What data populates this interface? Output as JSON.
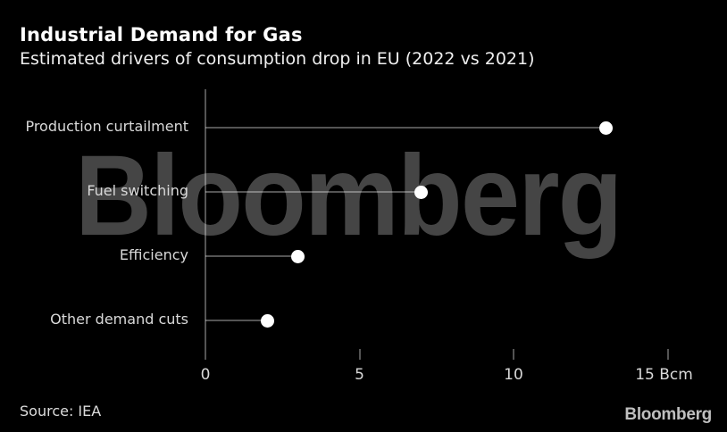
{
  "header": {
    "title": "Industrial Demand for Gas",
    "subtitle": "Estimated drivers of consumption drop in EU (2022 vs 2021)"
  },
  "watermark": "Bloomberg",
  "chart_data": {
    "type": "bar",
    "style": "lollipop",
    "orientation": "horizontal",
    "title": "Industrial Demand for Gas",
    "subtitle": "Estimated drivers of consumption drop in EU (2022 vs 2021)",
    "categories": [
      "Production curtailment",
      "Fuel switching",
      "Efficiency",
      "Other demand cuts"
    ],
    "values": [
      13,
      7,
      3,
      2
    ],
    "unit": "Bcm",
    "xlabel": "Bcm",
    "xlim": [
      0,
      16
    ],
    "xticks": [
      0,
      5,
      10,
      15
    ],
    "xtick_labels": [
      "0",
      "5",
      "10",
      "15 Bcm"
    ],
    "grid": false,
    "legend": null
  },
  "footer": {
    "source": "Source: IEA",
    "logo": "Bloomberg"
  },
  "colors": {
    "background": "#000000",
    "dot": "#ffffff",
    "line": "rgba(255,255,255,0.33)",
    "axis": "rgba(255,255,255,0.33)",
    "watermark": "#454545",
    "label": "#d9d9d9"
  }
}
